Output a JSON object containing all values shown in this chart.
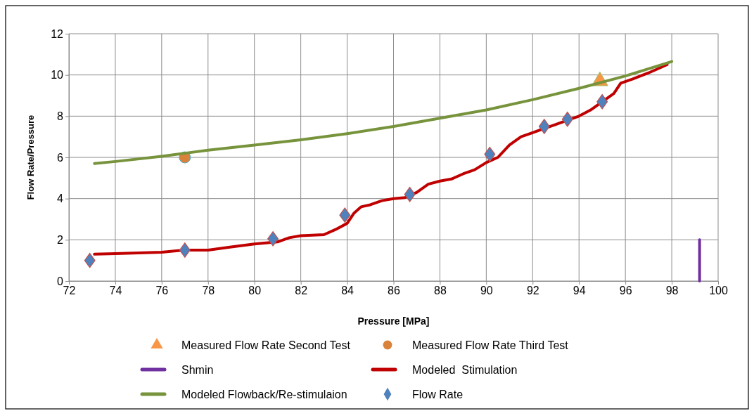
{
  "chart_data": {
    "type": "line",
    "xlabel": "Pressure [MPa]",
    "ylabel": "Flow Rate/Pressure",
    "xlim": [
      72,
      100
    ],
    "xticks": [
      72,
      74,
      76,
      78,
      80,
      82,
      84,
      86,
      88,
      90,
      92,
      94,
      96,
      98,
      100
    ],
    "ylim": [
      0,
      12
    ],
    "yticks": [
      0,
      2,
      4,
      6,
      8,
      10,
      12
    ],
    "grid": true,
    "legend": "bottom",
    "series": [
      {
        "name": "Measured Flow Rate Second Test",
        "type": "scatter",
        "marker": "triangle",
        "color": "#f79646",
        "x": [
          94.9
        ],
        "values": [
          9.7
        ]
      },
      {
        "name": "Measured Flow Rate Third Test",
        "type": "scatter",
        "marker": "circle",
        "color": "#d9823b",
        "x": [
          77
        ],
        "values": [
          6.0
        ]
      },
      {
        "name": "Shmin",
        "color": "#7030a0",
        "x": [
          99.2,
          99.2
        ],
        "values": [
          0,
          2
        ]
      },
      {
        "name": "Modeled  Stimulation",
        "color": "#c00000",
        "x": [
          73.1,
          74,
          76,
          77,
          78,
          79,
          80,
          81,
          81.5,
          82,
          83,
          83.5,
          84,
          84.3,
          84.6,
          85,
          85.5,
          86,
          86.5,
          87,
          87.5,
          88,
          88.5,
          89,
          89.5,
          90,
          90.5,
          91,
          91.5,
          92,
          92.5,
          93,
          93.5,
          94,
          94.5,
          95,
          95.5,
          95.8,
          96.3,
          97,
          97.8
        ],
        "values": [
          1.3,
          1.33,
          1.4,
          1.5,
          1.5,
          1.65,
          1.8,
          1.9,
          2.1,
          2.2,
          2.25,
          2.5,
          2.8,
          3.3,
          3.6,
          3.7,
          3.9,
          4.0,
          4.05,
          4.3,
          4.7,
          4.85,
          4.95,
          5.2,
          5.4,
          5.75,
          6.0,
          6.6,
          7.0,
          7.2,
          7.4,
          7.6,
          7.8,
          8.0,
          8.3,
          8.7,
          9.1,
          9.6,
          9.8,
          10.1,
          10.5
        ]
      },
      {
        "name": "Modeled Flowback/Re-stimulaion",
        "color": "#77933c",
        "x": [
          73.1,
          74,
          76,
          77,
          78,
          80,
          82,
          84,
          86,
          88,
          90,
          92,
          94,
          96,
          98
        ],
        "values": [
          5.7,
          5.8,
          6.05,
          6.2,
          6.35,
          6.6,
          6.85,
          7.15,
          7.5,
          7.9,
          8.3,
          8.8,
          9.35,
          9.95,
          10.65
        ]
      },
      {
        "name": "Flow Rate",
        "type": "scatter",
        "marker": "diamond",
        "color": "#4f81bd",
        "x": [
          72.9,
          77,
          80.8,
          83.9,
          86.7,
          90.15,
          92.5,
          93.5,
          95
        ],
        "values": [
          1.0,
          1.5,
          2.05,
          3.2,
          4.2,
          6.15,
          7.5,
          7.85,
          8.7
        ]
      }
    ]
  }
}
